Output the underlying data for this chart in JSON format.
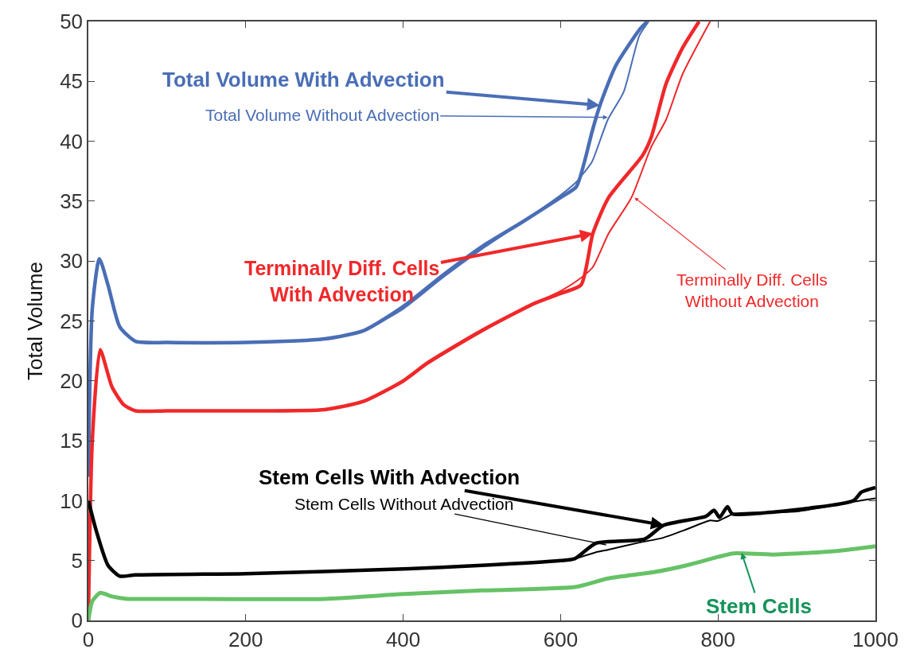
{
  "chart_data": {
    "type": "line",
    "ylabel": "Total Volume",
    "xlim": [
      0,
      1000
    ],
    "xticks": [
      0,
      200,
      400,
      600,
      800,
      1000
    ],
    "ylim": [
      0,
      50
    ],
    "yticks": [
      0,
      5,
      10,
      15,
      20,
      25,
      30,
      35,
      40,
      45,
      50
    ],
    "marker": "none",
    "line_style": "solid",
    "series": [
      {
        "color": "#4a6eb6",
        "x": [
          0,
          5,
          14,
          25,
          40,
          60,
          100,
          200,
          300,
          350,
          400,
          450,
          500,
          550,
          600,
          620,
          630,
          640,
          650,
          670,
          700,
          710
        ],
        "values": [
          12,
          26,
          30.2,
          28,
          24.5,
          23.3,
          23.2,
          23.2,
          23.5,
          24.2,
          26.2,
          28.8,
          31.2,
          33.2,
          35.3,
          36.2,
          38.2,
          40.8,
          43.0,
          46.3,
          49.3,
          50
        ]
      },
      {
        "color": "#4a6eb6",
        "x": [
          0,
          5,
          14,
          25,
          40,
          60,
          100,
          200,
          300,
          350,
          400,
          450,
          500,
          550,
          600,
          620,
          630,
          640,
          660,
          680,
          700,
          712
        ],
        "values": [
          12,
          26,
          30.2,
          28,
          24.5,
          23.3,
          23.2,
          23.2,
          23.5,
          24.2,
          26.0,
          28.6,
          31.0,
          33.2,
          35.5,
          36.6,
          37.4,
          38.3,
          41.8,
          44.1,
          48.8,
          50
        ]
      },
      {
        "color": "#f0282a",
        "x": [
          0,
          5,
          15,
          30,
          45,
          60,
          100,
          200,
          300,
          350,
          400,
          431,
          500,
          568,
          600,
          626,
          641,
          661,
          704,
          715,
          734,
          755,
          776
        ],
        "values": [
          0,
          15,
          22.6,
          19.5,
          18,
          17.5,
          17.5,
          17.5,
          17.6,
          18.3,
          20.0,
          21.5,
          24.2,
          26.5,
          27.3,
          28.0,
          32.3,
          35.3,
          38.8,
          40.3,
          44.8,
          47.8,
          50
        ]
      },
      {
        "color": "#f0282a",
        "x": [
          0,
          5,
          15,
          30,
          45,
          60,
          100,
          200,
          300,
          350,
          400,
          431,
          500,
          568,
          600,
          626,
          641,
          661,
          690,
          715,
          734,
          755,
          790
        ],
        "values": [
          0,
          15,
          22.6,
          19.5,
          18,
          17.5,
          17.5,
          17.5,
          17.6,
          18.3,
          19.9,
          21.4,
          24.1,
          26.5,
          27.5,
          28.6,
          29.5,
          32.3,
          35.3,
          39.5,
          41.8,
          45.6,
          50
        ]
      },
      {
        "color": "#000000",
        "x": [
          0,
          10,
          25,
          40,
          60,
          200,
          400,
          500,
          600,
          618,
          645,
          707,
          731,
          785,
          795,
          802,
          812,
          818,
          871,
          972,
          982,
          995,
          1000
        ],
        "values": [
          10,
          7.5,
          4.6,
          3.7,
          3.8,
          3.9,
          4.3,
          4.6,
          5.0,
          5.15,
          6.45,
          6.8,
          7.95,
          8.7,
          9.2,
          8.6,
          9.5,
          8.9,
          9.05,
          10.0,
          10.7,
          11.0,
          11.1
        ]
      },
      {
        "color": "#000000",
        "x": [
          0,
          10,
          25,
          40,
          60,
          200,
          400,
          500,
          600,
          618,
          645,
          660,
          700,
          730,
          760,
          790,
          800,
          820,
          900,
          980,
          1000
        ],
        "values": [
          10,
          7.5,
          4.6,
          3.7,
          3.8,
          3.9,
          4.3,
          4.6,
          5.0,
          5.15,
          5.7,
          5.9,
          6.5,
          6.9,
          7.6,
          8.35,
          8.3,
          8.9,
          9.1,
          10.0,
          10.2
        ]
      },
      {
        "color": "#66c266",
        "x": [
          0,
          5,
          15,
          30,
          50,
          100,
          300,
          400,
          500,
          620,
          660,
          720,
          760,
          800,
          820,
          870,
          950,
          1000
        ],
        "values": [
          0,
          1.6,
          2.3,
          2.0,
          1.8,
          1.8,
          1.8,
          2.2,
          2.5,
          2.8,
          3.5,
          4.05,
          4.6,
          5.3,
          5.6,
          5.5,
          5.8,
          6.2
        ]
      }
    ],
    "annotations": [
      {
        "text": "Total Volume With Advection",
        "x": 650,
        "y": 43.0
      },
      {
        "text": "Total Volume Without Advection",
        "x": 660,
        "y": 42.0
      },
      {
        "text": "Terminally Diff. Cells\nWith Advection",
        "x": 641,
        "y": 32.3
      },
      {
        "text": "Terminally Diff. Cells\nWithout Advection",
        "x": 694,
        "y": 35.3
      },
      {
        "text": "Stem Cells With Advection",
        "x": 731,
        "y": 7.95
      },
      {
        "text": "Stem Cells Without Advection",
        "x": 658,
        "y": 6.3
      },
      {
        "text": "Stem Cells",
        "x": 830,
        "y": 5.65
      }
    ]
  }
}
